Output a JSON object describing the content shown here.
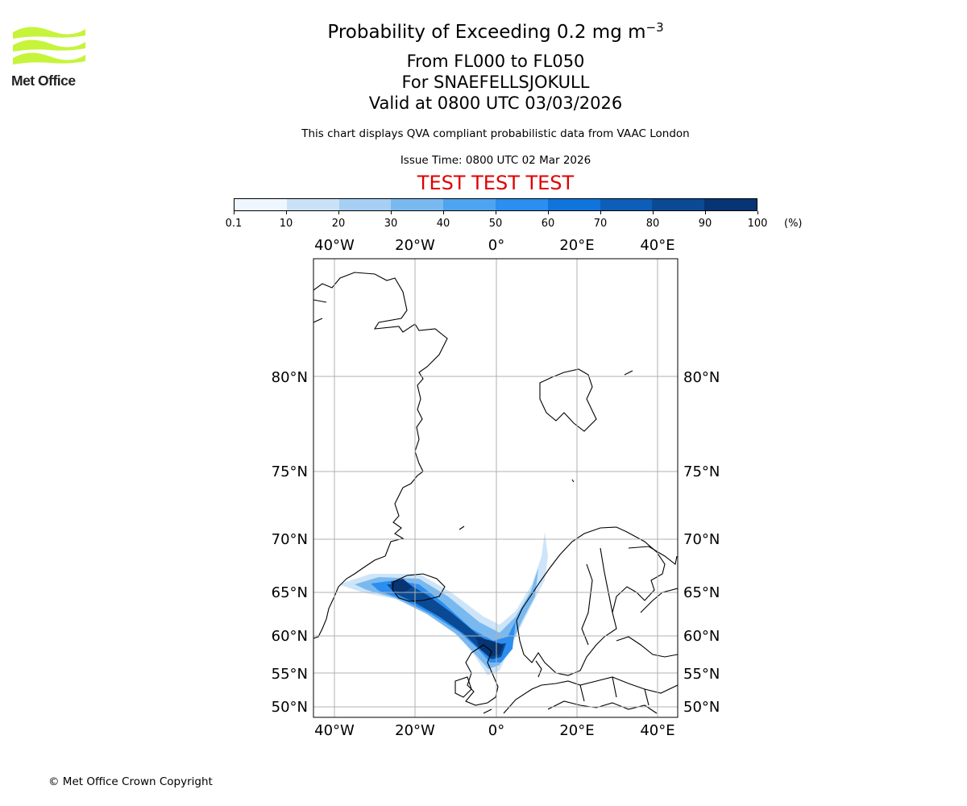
{
  "brand": {
    "name": "Met Office",
    "logo_color": "#c6f43a"
  },
  "title": {
    "main": "Probability of Exceeding 0.2 mg m",
    "main_sup": "−3",
    "line2": "From FL000 to FL050",
    "line3": "For SNAEFELLSJOKULL",
    "line4": "Valid at 0800 UTC 03/03/2026"
  },
  "note": "This chart displays QVA compliant probabilistic data from VAAC London",
  "issue_time": "Issue Time: 0800 UTC 02 Mar 2026",
  "test_banner": "TEST TEST TEST",
  "colorbar": {
    "ticks": [
      "0.1",
      "10",
      "20",
      "30",
      "40",
      "50",
      "60",
      "70",
      "80",
      "90",
      "100"
    ],
    "unit": "(%)",
    "colors": [
      "#eef6ff",
      "#c9e2f8",
      "#a6cff3",
      "#7ab9f0",
      "#4ea4f0",
      "#2b8ef0",
      "#0f74dc",
      "#0d5eb8",
      "#0a4a94",
      "#073472"
    ]
  },
  "map": {
    "lon_labels": [
      "40°W",
      "20°W",
      "0°",
      "20°E",
      "40°E"
    ],
    "lat_labels": [
      "80°N",
      "75°N",
      "70°N",
      "65°N",
      "60°N",
      "55°N",
      "50°N"
    ],
    "volcano": "SNAEFELLSJOKULL"
  },
  "copyright": "© Met Office Crown Copyright"
}
